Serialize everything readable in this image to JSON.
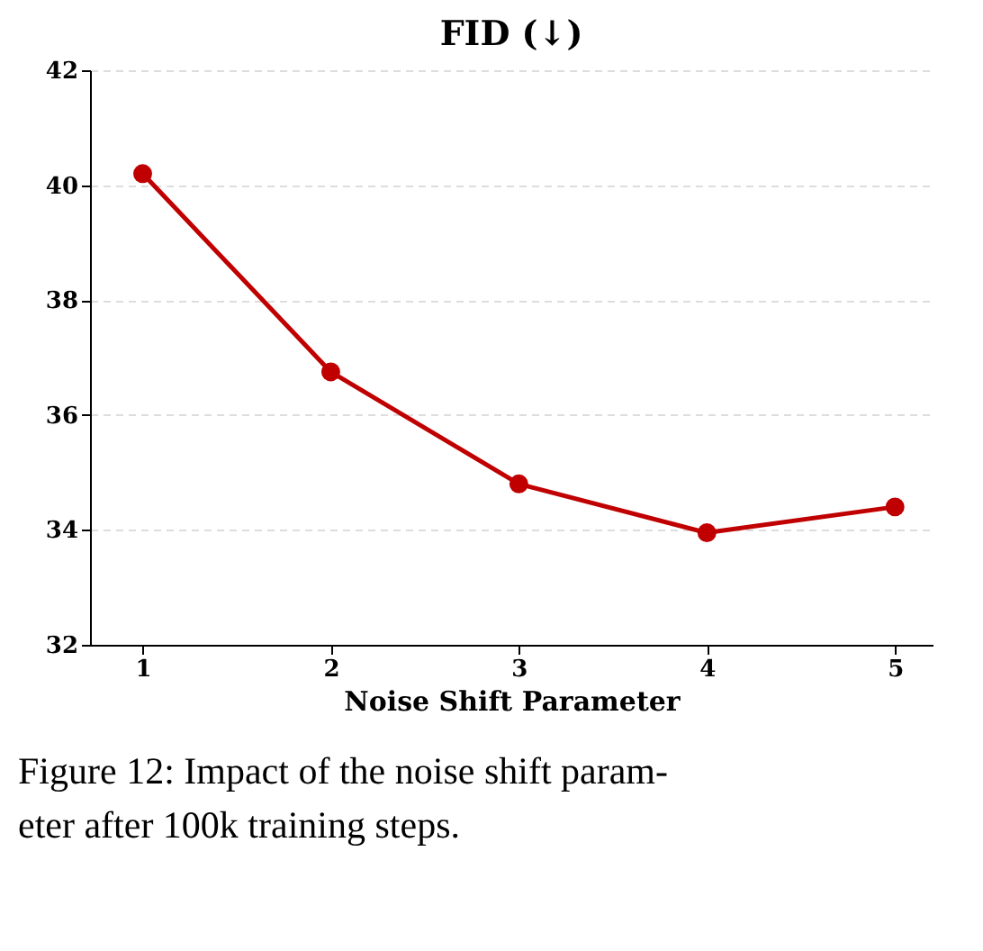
{
  "chart_data": {
    "type": "line",
    "title": "FID (↓)",
    "xlabel": "Noise Shift Parameter",
    "x": [
      1,
      2,
      3,
      4,
      5
    ],
    "series": [
      {
        "color": "#c00000",
        "values": [
          40.2,
          36.75,
          34.8,
          33.95,
          34.4
        ]
      }
    ],
    "xlim": [
      0.72,
      5.2
    ],
    "xticks": [
      1,
      2,
      3,
      4,
      5
    ],
    "ylim": [
      32,
      42
    ],
    "yticks": [
      32,
      34,
      36,
      38,
      40,
      42
    ],
    "grid": "y",
    "marker": "circle",
    "line_style": "solid",
    "annotations": [
      "Figure 12: Impact of the noise shift param-\neter after 100k training steps."
    ]
  }
}
